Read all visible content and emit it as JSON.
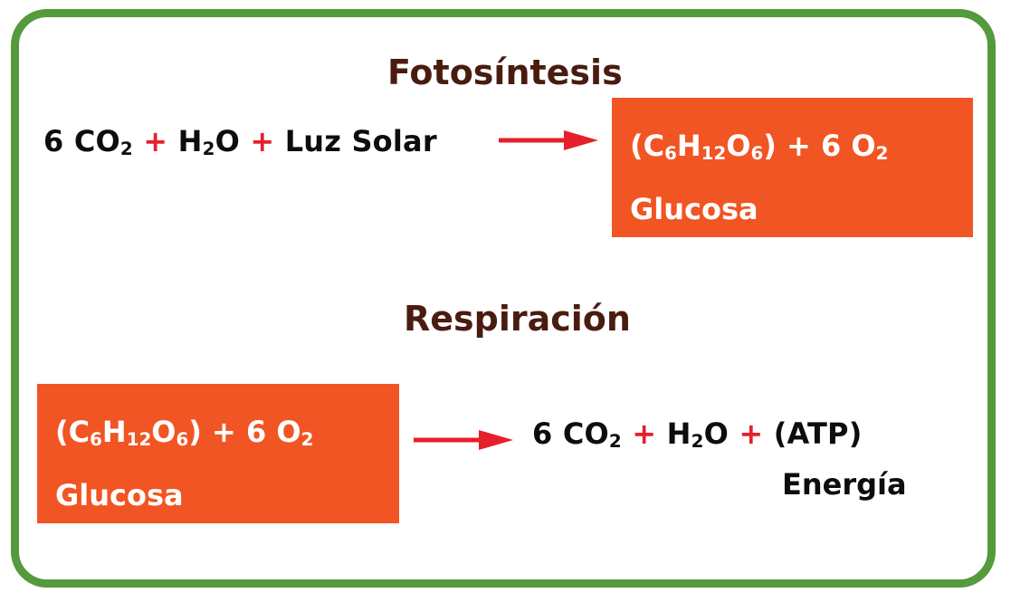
{
  "frame_color": "#559a3c",
  "accent_color": "#e6202a",
  "box_color": "#f15523",
  "title_color": "#4a1c10",
  "photosynthesis": {
    "title": "Fotosíntesis",
    "reactants": {
      "co2_coef": "6",
      "co2_base": "CO",
      "co2_sub": "2",
      "plus1": "+",
      "h2o_h": "H",
      "h2o_sub": "2",
      "h2o_o": "O",
      "plus2": "+",
      "light": "Luz Solar"
    },
    "products": {
      "open": "(C",
      "c_sub": "6",
      "h": "H",
      "h_sub": "12",
      "o": "O",
      "o_sub": "6",
      "close": ") + 6 O",
      "o2_sub": "2",
      "label": "Glucosa"
    }
  },
  "respiration": {
    "title": "Respiración",
    "reactants": {
      "open": "(C",
      "c_sub": "6",
      "h": "H",
      "h_sub": "12",
      "o": "O",
      "o_sub": "6",
      "close": ") + 6 O",
      "o2_sub": "2",
      "label": "Glucosa"
    },
    "products": {
      "co2_coef": "6",
      "co2_base": "CO",
      "co2_sub": "2",
      "plus1": "+",
      "h2o_h": "H",
      "h2o_sub": "2",
      "h2o_o": "O",
      "plus2": "+",
      "atp": "(ATP)",
      "energy": "Energía"
    }
  }
}
